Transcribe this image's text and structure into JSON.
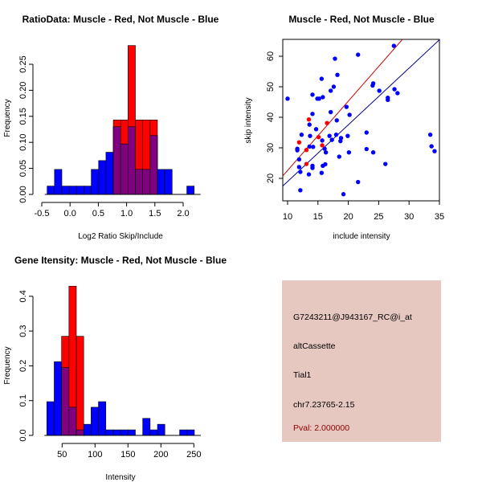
{
  "colors": {
    "muscle": "#ff0000",
    "not_muscle": "#0000ff",
    "overlap": "#800080",
    "info_bg": "#e6c8c0",
    "pval": "#8b0000"
  },
  "chart_data": [
    {
      "type": "bar",
      "subtype": "histogram-overlay",
      "title": "RatioData: Muscle - Red, Not Muscle - Blue",
      "xlabel": "Log2 Ratio Skip/Include",
      "ylabel": "Frequency",
      "xlim": [
        -0.5,
        2.2
      ],
      "ylim": [
        0,
        0.29
      ],
      "xticks": [
        "-0.5",
        "0.0",
        "0.5",
        "1.0",
        "1.5",
        "2.0"
      ],
      "yticks": [
        "0.00",
        "0.05",
        "0.10",
        "0.15",
        "0.20",
        "0.25"
      ],
      "bin_start": -0.405,
      "bin_width": 0.13,
      "series": [
        {
          "name": "Not Muscle",
          "color": "blue",
          "values": [
            0.016,
            0.048,
            0.016,
            0.016,
            0.016,
            0.016,
            0.048,
            0.065,
            0.081,
            0.13,
            0.097,
            0.13,
            0.048,
            0.048,
            0.113,
            0.048,
            0.048,
            0,
            0,
            0.016
          ]
        },
        {
          "name": "Muscle",
          "color": "red",
          "values": [
            0,
            0,
            0,
            0,
            0,
            0,
            0,
            0,
            0,
            0.143,
            0.143,
            0.286,
            0.143,
            0.143,
            0.143,
            0,
            0,
            0,
            0,
            0
          ]
        }
      ]
    },
    {
      "type": "scatter",
      "title": "Muscle - Red, Not Muscle - Blue",
      "xlabel": "include intensity",
      "ylabel": "skip intensity",
      "xlim": [
        9.1,
        35.4
      ],
      "ylim": [
        13.5,
        66
      ],
      "xticks": [
        "10",
        "15",
        "20",
        "25",
        "30",
        "35"
      ],
      "yticks": [
        "20",
        "30",
        "40",
        "50",
        "60"
      ],
      "series": [
        {
          "name": "Not Muscle",
          "color": "blue",
          "fit": {
            "slope": 1.857,
            "intercept": 0.4
          },
          "points": [
            [
              10,
              46.1
            ],
            [
              17.8,
              59.2
            ],
            [
              21.6,
              60.5
            ],
            [
              27.5,
              63.4
            ],
            [
              18.2,
              53.9
            ],
            [
              15.6,
              52.6
            ],
            [
              17.6,
              50
            ],
            [
              17.1,
              48.7
            ],
            [
              24.1,
              51.1
            ],
            [
              24.0,
              50.4
            ],
            [
              25.1,
              48.7
            ],
            [
              27.6,
              49.2
            ],
            [
              28.1,
              47.9
            ],
            [
              26.5,
              46.4
            ],
            [
              26.5,
              45.7
            ],
            [
              14.1,
              47.4
            ],
            [
              14.9,
              46.1
            ],
            [
              15.2,
              46.1
            ],
            [
              15.8,
              46.6
            ],
            [
              19.7,
              43.4
            ],
            [
              14.1,
              41.1
            ],
            [
              17.1,
              41.7
            ],
            [
              20.2,
              40.8
            ],
            [
              13.6,
              37.6
            ],
            [
              18.1,
              39.0
            ],
            [
              14.7,
              36.1
            ],
            [
              12.3,
              34.3
            ],
            [
              13.7,
              33.9
            ],
            [
              16.9,
              33.9
            ],
            [
              18.0,
              34.3
            ],
            [
              19.9,
              33.9
            ],
            [
              23.0,
              35
            ],
            [
              17.3,
              32.6
            ],
            [
              18.8,
              33.2
            ],
            [
              18.7,
              32.2
            ],
            [
              15.7,
              32.4
            ],
            [
              13.6,
              30.4
            ],
            [
              14.2,
              30.3
            ],
            [
              11.6,
              29.7
            ],
            [
              11.6,
              29.2
            ],
            [
              16.1,
              29.7
            ],
            [
              16.3,
              28.5
            ],
            [
              20.1,
              28.5
            ],
            [
              24.1,
              28.5
            ],
            [
              23.0,
              29.6
            ],
            [
              18.5,
              27.1
            ],
            [
              11.9,
              26.2
            ],
            [
              11.9,
              23.7
            ],
            [
              14.1,
              24.1
            ],
            [
              14.1,
              23.4
            ],
            [
              15.8,
              24.1
            ],
            [
              16.2,
              24.6
            ],
            [
              12.1,
              22.1
            ],
            [
              15.6,
              21.8
            ],
            [
              13.5,
              21.3
            ],
            [
              21.6,
              18.8
            ],
            [
              12.1,
              16.1
            ],
            [
              19.2,
              14.8
            ],
            [
              26.1,
              24.7
            ],
            [
              33.5,
              34.3
            ],
            [
              33.7,
              30.5
            ],
            [
              34.2,
              28.9
            ]
          ]
        },
        {
          "name": "Muscle",
          "color": "red",
          "fit": {
            "slope": 2.27,
            "intercept": -0.1
          },
          "points": [
            [
              11.9,
              31.8
            ],
            [
              13.5,
              39.3
            ],
            [
              16.5,
              38.1
            ],
            [
              15.1,
              33.5
            ],
            [
              13.1,
              29.3
            ],
            [
              15.7,
              30.8
            ],
            [
              13.1,
              24.7
            ]
          ]
        }
      ]
    },
    {
      "type": "bar",
      "subtype": "histogram-overlay",
      "title": "Gene Itensity: Muscle - Red, Not Muscle - Blue",
      "xlabel": "Intensity",
      "ylabel": "Frequency",
      "xlim": [
        26.8,
        252
      ],
      "ylim": [
        0,
        0.43
      ],
      "xticks": [
        "50",
        "100",
        "150",
        "200",
        "250"
      ],
      "yticks": [
        "0.0",
        "0.1",
        "0.2",
        "0.3",
        "0.4"
      ],
      "bin_start": 26.8,
      "bin_width": 11.2,
      "series": [
        {
          "name": "Not Muscle",
          "color": "blue",
          "values": [
            0.097,
            0.212,
            0.195,
            0.081,
            0.016,
            0.032,
            0.081,
            0.097,
            0.016,
            0.016,
            0.016,
            0.016,
            0,
            0.049,
            0.016,
            0.032,
            0,
            0,
            0.016,
            0.016
          ]
        },
        {
          "name": "Muscle",
          "color": "red",
          "values": [
            0,
            0,
            0.285,
            0.429,
            0.285,
            0,
            0,
            0,
            0,
            0,
            0,
            0,
            0,
            0,
            0,
            0,
            0,
            0,
            0,
            0
          ]
        }
      ]
    }
  ],
  "info_panel": {
    "probe_id": "G7243211@J943167_RC@i_at",
    "event_type": "altCassette",
    "gene": "Tial1",
    "location": "chr7.23765-2.15",
    "pval": "Pval: 2.000000"
  }
}
